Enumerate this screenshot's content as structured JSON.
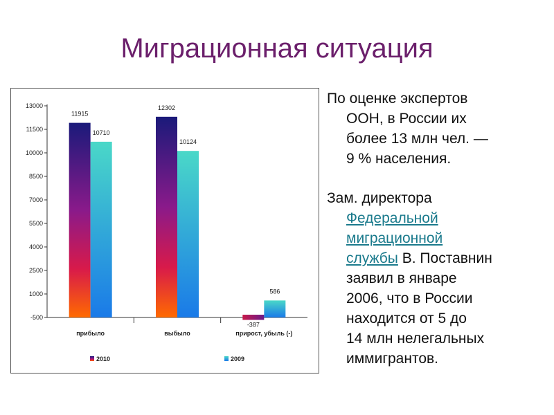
{
  "slide": {
    "title": "Миграционная ситуация"
  },
  "text": {
    "p1_lines": [
      "По оценке экспертов",
      "ООН, в России их",
      "более 13 млн чел. —",
      "9 % населения."
    ],
    "p2_line1": "Зам. директора",
    "p2_link_lines": [
      "Федеральной",
      "миграционной",
      "службы"
    ],
    "p2_after_link": " В. Поставнин",
    "p2_rest_lines": [
      "заявил в январе",
      "2006, что в России",
      "находится от 5 до",
      "14 млн нелегальных",
      "иммигрантов."
    ]
  },
  "chart_data": {
    "type": "bar",
    "categories": [
      "прибыло",
      "выбыло",
      "прирост, убыль (-)"
    ],
    "series": [
      {
        "name": "2010",
        "values": [
          11915,
          12302,
          -387
        ],
        "color": "#c0143c"
      },
      {
        "name": "2009",
        "values": [
          10710,
          10124,
          586
        ],
        "color": "#1aa8d8"
      }
    ],
    "data_labels": [
      [
        "11915",
        "12302",
        "-387"
      ],
      [
        "10710",
        "10124",
        "586"
      ]
    ],
    "ytick_labels": [
      "13000",
      "11500",
      "10000",
      "8500",
      "7000",
      "5500",
      "4000",
      "2500",
      "1000",
      "-500"
    ],
    "ylim": [
      -500,
      13000
    ],
    "legend_position": "bottom",
    "grid": false
  }
}
